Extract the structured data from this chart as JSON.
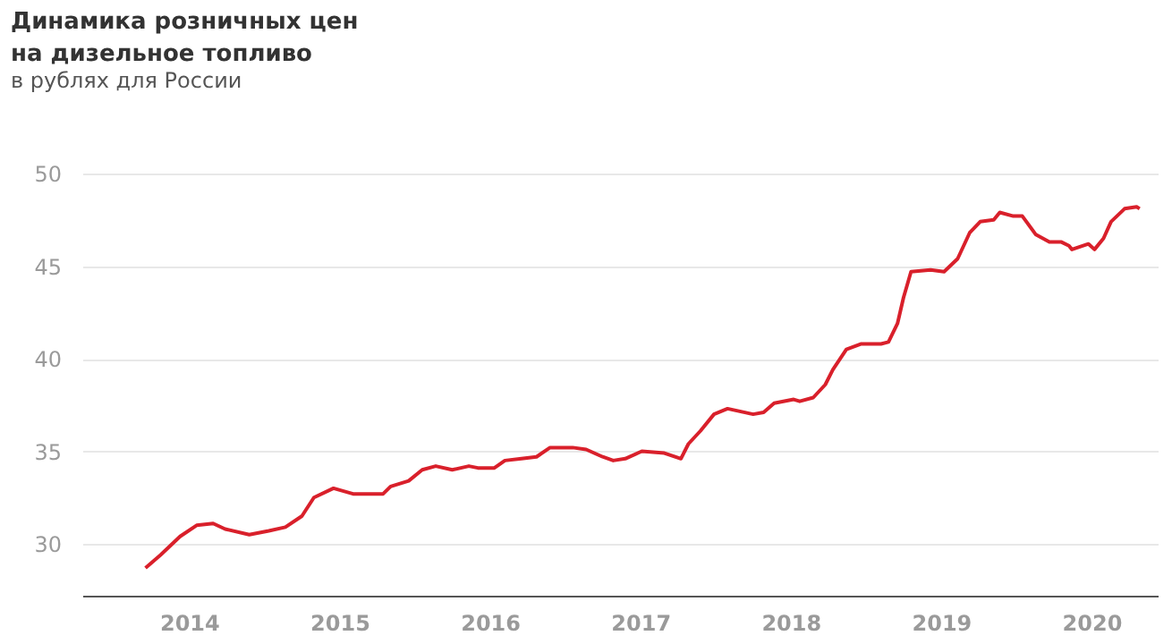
{
  "chart_data": {
    "type": "line",
    "title": "Динамика розничных цен на дизельное топливо",
    "subtitle": "в рублях для России",
    "x": [
      2013.71,
      2013.81,
      2013.94,
      2014.05,
      2014.16,
      2014.24,
      2014.4,
      2014.53,
      2014.64,
      2014.75,
      2014.83,
      2014.96,
      2015.09,
      2015.29,
      2015.34,
      2015.46,
      2015.55,
      2015.64,
      2015.75,
      2015.86,
      2015.92,
      2016.03,
      2016.1,
      2016.21,
      2016.31,
      2016.4,
      2016.55,
      2016.64,
      2016.75,
      2016.82,
      2016.9,
      2017.01,
      2017.16,
      2017.27,
      2017.32,
      2017.4,
      2017.49,
      2017.58,
      2017.75,
      2017.82,
      2017.89,
      2018.02,
      2018.06,
      2018.15,
      2018.23,
      2018.28,
      2018.37,
      2018.47,
      2018.6,
      2018.65,
      2018.71,
      2018.75,
      2018.8,
      2018.93,
      2019.02,
      2019.11,
      2019.19,
      2019.26,
      2019.35,
      2019.39,
      2019.48,
      2019.54,
      2019.63,
      2019.72,
      2019.8,
      2019.85,
      2019.87,
      2019.98,
      2020.02,
      2020.08,
      2020.13,
      2020.22,
      2020.3,
      2020.32
    ],
    "series": [
      {
        "color": "#d9202b",
        "values": [
          28.7,
          29.4,
          30.4,
          31.0,
          31.1,
          30.8,
          30.5,
          30.7,
          30.9,
          31.5,
          32.5,
          33.0,
          32.7,
          32.7,
          33.1,
          33.4,
          34.0,
          34.2,
          34.0,
          34.2,
          34.1,
          34.1,
          34.5,
          34.6,
          34.7,
          35.2,
          35.2,
          35.1,
          34.7,
          34.5,
          34.6,
          35.0,
          34.9,
          34.6,
          35.4,
          36.1,
          37.0,
          37.3,
          37.0,
          37.1,
          37.6,
          37.8,
          37.7,
          37.9,
          38.6,
          39.4,
          40.5,
          40.8,
          40.8,
          40.9,
          41.9,
          43.3,
          44.7,
          44.8,
          44.7,
          45.4,
          46.8,
          47.4,
          47.5,
          47.9,
          47.7,
          47.7,
          46.7,
          46.3,
          46.3,
          46.1,
          45.9,
          46.2,
          45.9,
          46.5,
          47.4,
          48.1,
          48.2,
          48.1
        ]
      }
    ],
    "xlim": [
      2013.29,
      2020.44
    ],
    "xticks": [
      2014,
      2015,
      2016,
      2017,
      2018,
      2019,
      2020
    ],
    "ylim": [
      27.2,
      50
    ],
    "yticks": [
      30,
      35,
      40,
      45,
      50
    ],
    "grid": "y",
    "marker": "none",
    "line_style": "solid"
  }
}
